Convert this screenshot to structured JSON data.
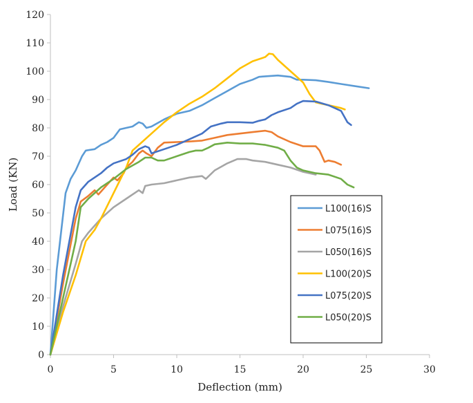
{
  "chart_data": {
    "type": "line",
    "title": "",
    "xlabel": "Deflection (mm)",
    "ylabel": "Load (KN)",
    "xlim": [
      0,
      30
    ],
    "ylim": [
      0,
      120
    ],
    "xticks": [
      0,
      5,
      10,
      15,
      20,
      25,
      30
    ],
    "yticks": [
      0,
      10,
      20,
      30,
      40,
      50,
      60,
      70,
      80,
      90,
      100,
      110,
      120
    ],
    "grid": false,
    "legend_position": "right, lower-middle inside plot",
    "series": [
      {
        "name": "L100(16)S",
        "color": "#5B9BD5",
        "points": [
          [
            0,
            0
          ],
          [
            0.5,
            30
          ],
          [
            1.2,
            57
          ],
          [
            1.6,
            62
          ],
          [
            2.0,
            65
          ],
          [
            2.5,
            70
          ],
          [
            2.8,
            72
          ],
          [
            3.5,
            72.5
          ],
          [
            4,
            74
          ],
          [
            4.5,
            75
          ],
          [
            5,
            76.5
          ],
          [
            5.5,
            79.5
          ],
          [
            6,
            80
          ],
          [
            6.5,
            80.5
          ],
          [
            7,
            82
          ],
          [
            7.3,
            81.5
          ],
          [
            7.6,
            80
          ],
          [
            8,
            80.5
          ],
          [
            9,
            83
          ],
          [
            10,
            85
          ],
          [
            11,
            86
          ],
          [
            12,
            88
          ],
          [
            13,
            90.5
          ],
          [
            14,
            93
          ],
          [
            15,
            95.5
          ],
          [
            16,
            97
          ],
          [
            16.5,
            98
          ],
          [
            17,
            98.2
          ],
          [
            18,
            98.5
          ],
          [
            19,
            98
          ],
          [
            19.5,
            97
          ],
          [
            20,
            97
          ],
          [
            21,
            96.8
          ],
          [
            22,
            96.2
          ],
          [
            23,
            95.5
          ],
          [
            24,
            94.8
          ],
          [
            25.2,
            94
          ]
        ]
      },
      {
        "name": "L075(16)S",
        "color": "#ED7D31",
        "points": [
          [
            0,
            0
          ],
          [
            1,
            25
          ],
          [
            2,
            48
          ],
          [
            2.4,
            54
          ],
          [
            3,
            56
          ],
          [
            3.5,
            58
          ],
          [
            3.8,
            56.5
          ],
          [
            4.5,
            60
          ],
          [
            5,
            62.5
          ],
          [
            5.3,
            61.5
          ],
          [
            5.8,
            64
          ],
          [
            6,
            66
          ],
          [
            6.5,
            68
          ],
          [
            7,
            71
          ],
          [
            7.3,
            72
          ],
          [
            7.6,
            71
          ],
          [
            8,
            70
          ],
          [
            8.5,
            73
          ],
          [
            9,
            74.8
          ],
          [
            10,
            75
          ],
          [
            11,
            75.2
          ],
          [
            12,
            75.5
          ],
          [
            13,
            76.5
          ],
          [
            14,
            77.5
          ],
          [
            15,
            78
          ],
          [
            16,
            78.5
          ],
          [
            17,
            79
          ],
          [
            17.5,
            78.5
          ],
          [
            18,
            77
          ],
          [
            19,
            75
          ],
          [
            20,
            73.5
          ],
          [
            21,
            73.5
          ],
          [
            21.3,
            72
          ],
          [
            21.7,
            68
          ],
          [
            22,
            68.5
          ],
          [
            22.5,
            68
          ],
          [
            23,
            67
          ]
        ]
      },
      {
        "name": "L050(16)S",
        "color": "#A5A5A5",
        "points": [
          [
            0,
            0
          ],
          [
            1,
            17
          ],
          [
            2,
            32
          ],
          [
            2.5,
            40
          ],
          [
            3,
            43
          ],
          [
            4,
            48
          ],
          [
            5,
            52
          ],
          [
            6,
            55
          ],
          [
            7,
            58
          ],
          [
            7.3,
            57
          ],
          [
            7.5,
            59.5
          ],
          [
            8,
            60
          ],
          [
            9,
            60.5
          ],
          [
            10,
            61.5
          ],
          [
            11,
            62.5
          ],
          [
            12,
            63
          ],
          [
            12.3,
            62
          ],
          [
            13,
            65
          ],
          [
            14,
            67.5
          ],
          [
            14.8,
            69
          ],
          [
            15.5,
            69
          ],
          [
            16,
            68.5
          ],
          [
            17,
            68
          ],
          [
            18,
            67
          ],
          [
            19,
            66
          ],
          [
            20,
            64.5
          ],
          [
            21,
            63.5
          ]
        ]
      },
      {
        "name": "L100(20)S",
        "color": "#FFC000",
        "points": [
          [
            0,
            0
          ],
          [
            1,
            15
          ],
          [
            2,
            28
          ],
          [
            2.8,
            40
          ],
          [
            3.5,
            44
          ],
          [
            4,
            48
          ],
          [
            5,
            57
          ],
          [
            6,
            66
          ],
          [
            6.5,
            72
          ],
          [
            7,
            74
          ],
          [
            8,
            78
          ],
          [
            9,
            82
          ],
          [
            10,
            85.5
          ],
          [
            11,
            88.5
          ],
          [
            12,
            91
          ],
          [
            13,
            94
          ],
          [
            14,
            97.5
          ],
          [
            15,
            101
          ],
          [
            16,
            103.5
          ],
          [
            17,
            105
          ],
          [
            17.3,
            106.2
          ],
          [
            17.6,
            106
          ],
          [
            18,
            104
          ],
          [
            19,
            100
          ],
          [
            20,
            96
          ],
          [
            20.5,
            92
          ],
          [
            21,
            89
          ],
          [
            22,
            88
          ],
          [
            23,
            87
          ],
          [
            23.3,
            86.5
          ]
        ]
      },
      {
        "name": "L075(20)S",
        "color": "#4472C4",
        "points": [
          [
            0,
            0
          ],
          [
            1,
            28
          ],
          [
            2,
            52
          ],
          [
            2.4,
            58
          ],
          [
            3,
            61
          ],
          [
            4,
            64
          ],
          [
            4.5,
            66
          ],
          [
            5,
            67.5
          ],
          [
            6,
            69
          ],
          [
            6.5,
            70.5
          ],
          [
            7,
            72.5
          ],
          [
            7.5,
            73.5
          ],
          [
            7.8,
            73
          ],
          [
            8,
            71
          ],
          [
            9,
            72.5
          ],
          [
            10,
            74
          ],
          [
            11,
            76
          ],
          [
            12,
            78
          ],
          [
            12.7,
            80.5
          ],
          [
            13.5,
            81.5
          ],
          [
            14,
            82
          ],
          [
            15,
            82
          ],
          [
            16,
            81.8
          ],
          [
            16.5,
            82.5
          ],
          [
            17,
            83
          ],
          [
            17.5,
            84.5
          ],
          [
            18,
            85.5
          ],
          [
            19,
            87
          ],
          [
            19.5,
            88.5
          ],
          [
            20,
            89.5
          ],
          [
            21,
            89.3
          ],
          [
            22,
            88
          ],
          [
            22.5,
            87
          ],
          [
            23,
            86
          ],
          [
            23.5,
            82
          ],
          [
            23.8,
            81
          ]
        ]
      },
      {
        "name": "L050(20)S",
        "color": "#70AD47",
        "points": [
          [
            0,
            0
          ],
          [
            1,
            20
          ],
          [
            2,
            40
          ],
          [
            2.4,
            52
          ],
          [
            3,
            55
          ],
          [
            4,
            59
          ],
          [
            5,
            62
          ],
          [
            6,
            65.5
          ],
          [
            7,
            68
          ],
          [
            7.5,
            69.5
          ],
          [
            8,
            69.5
          ],
          [
            8.5,
            68.5
          ],
          [
            9,
            68.5
          ],
          [
            10,
            70
          ],
          [
            11,
            71.5
          ],
          [
            11.5,
            72
          ],
          [
            12,
            72
          ],
          [
            12.5,
            73
          ],
          [
            13,
            74.2
          ],
          [
            14,
            74.8
          ],
          [
            15,
            74.5
          ],
          [
            16,
            74.5
          ],
          [
            17,
            74
          ],
          [
            18,
            73
          ],
          [
            18.5,
            72
          ],
          [
            19,
            68.5
          ],
          [
            19.5,
            66
          ],
          [
            20,
            65
          ],
          [
            21,
            64
          ],
          [
            22,
            63.5
          ],
          [
            23,
            62
          ],
          [
            23.5,
            60
          ],
          [
            24,
            59
          ]
        ]
      }
    ]
  }
}
